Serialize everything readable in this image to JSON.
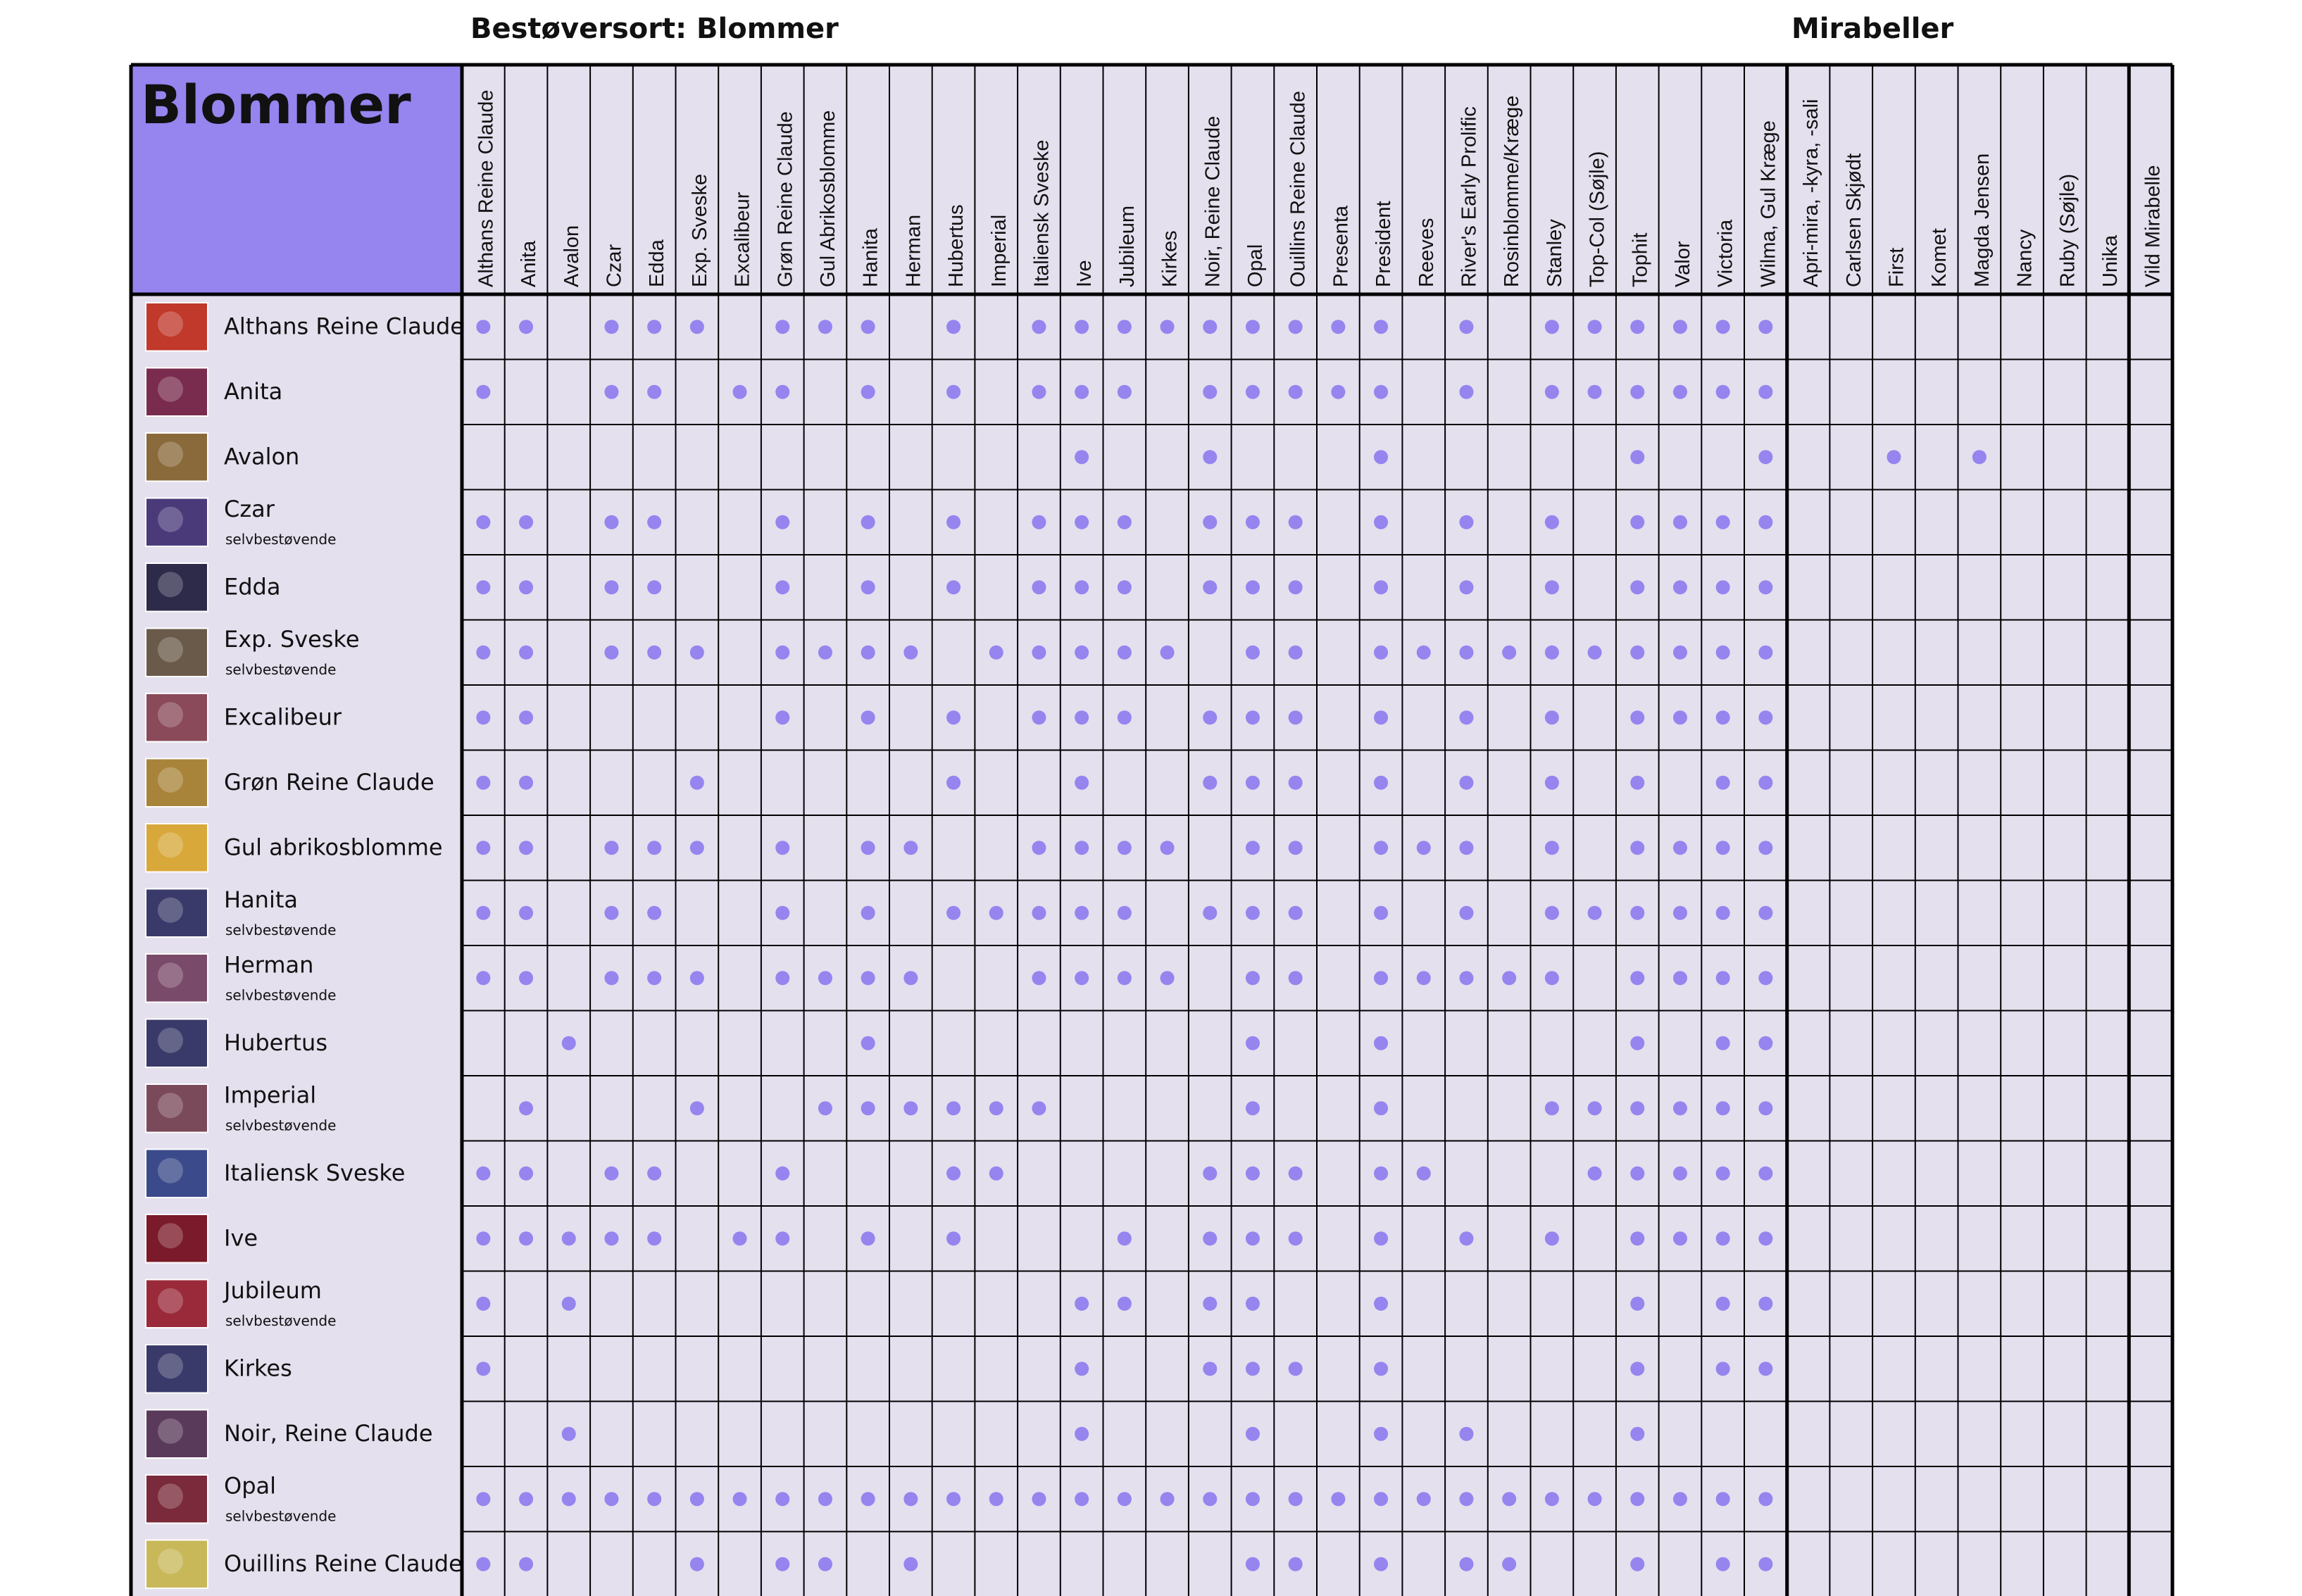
{
  "header": {
    "pollinator_label": "Bestøversort: Blommer",
    "mirabelle_label": "Mirabeller"
  },
  "table": {
    "title": "Blommer",
    "self_fertile_note": "selvbestøvende",
    "colors": {
      "background": "#e4e0ee",
      "title_bg": "#9684ef",
      "dot": "#9684ef",
      "line": "#000000"
    },
    "plum_columns": [
      "Althans Reine Claude",
      "Anita",
      "Avalon",
      "Czar",
      "Edda",
      "Exp. Sveske",
      "Excalibeur",
      "Grøn Reine Claude",
      "Gul Abrikosblomme",
      "Hanita",
      "Herman",
      "Hubertus",
      "Imperial",
      "Italiensk Sveske",
      "Ive",
      "Jubileum",
      "Kirkes",
      "Noir, Reine Claude",
      "Opal",
      "Ouillins Reine Claude",
      "Presenta",
      "President",
      "Reeves",
      "River's Early Prolific",
      "Rosinblomme/Kræge",
      "Stanley",
      "Top-Col (Søjle)",
      "Tophit",
      "Valor",
      "Victoria",
      "Wilma, Gul Kræge"
    ],
    "mirabelle_columns": [
      "Apri-mira, -kyra, -sali",
      "Carlsen Skjødt",
      "First",
      "Komet",
      "Magda Jensen",
      "Nancy",
      "Ruby (Søjle)",
      "Unika"
    ],
    "wild_column": [
      "Vild Mirabelle"
    ],
    "rows": [
      {
        "name": "Althans Reine Claude",
        "self_fertile": false,
        "fruit_color": "#c0392b",
        "dots": [
          0,
          1,
          3,
          4,
          5,
          7,
          8,
          9,
          11,
          13,
          14,
          15,
          16,
          17,
          18,
          19,
          20,
          21,
          23,
          25,
          26,
          27,
          28,
          29,
          30
        ]
      },
      {
        "name": "Anita",
        "self_fertile": false,
        "fruit_color": "#7a2c4e",
        "dots": [
          0,
          3,
          4,
          6,
          7,
          9,
          11,
          13,
          14,
          15,
          17,
          18,
          19,
          20,
          21,
          23,
          25,
          26,
          27,
          28,
          29,
          30
        ]
      },
      {
        "name": "Avalon",
        "self_fertile": false,
        "fruit_color": "#8a6a3a",
        "dots": [
          14,
          17,
          21,
          27,
          30,
          33,
          35
        ]
      },
      {
        "name": "Czar",
        "self_fertile": true,
        "fruit_color": "#4a3a7a",
        "dots": [
          0,
          1,
          3,
          4,
          7,
          9,
          11,
          13,
          14,
          15,
          17,
          18,
          19,
          21,
          23,
          25,
          27,
          28,
          29,
          30
        ]
      },
      {
        "name": "Edda",
        "self_fertile": false,
        "fruit_color": "#2e2a4a",
        "dots": [
          0,
          1,
          3,
          4,
          7,
          9,
          11,
          13,
          14,
          15,
          17,
          18,
          19,
          21,
          23,
          25,
          27,
          28,
          29,
          30
        ]
      },
      {
        "name": "Exp. Sveske",
        "self_fertile": true,
        "fruit_color": "#6a5a4a",
        "dots": [
          0,
          1,
          3,
          4,
          5,
          7,
          8,
          9,
          10,
          12,
          13,
          14,
          15,
          16,
          18,
          19,
          21,
          22,
          23,
          24,
          25,
          26,
          27,
          28,
          29,
          30
        ]
      },
      {
        "name": "Excalibeur",
        "self_fertile": false,
        "fruit_color": "#8a4a5a",
        "dots": [
          0,
          1,
          7,
          9,
          11,
          13,
          14,
          15,
          17,
          18,
          19,
          21,
          23,
          25,
          27,
          28,
          29,
          30
        ]
      },
      {
        "name": "Grøn Reine Claude",
        "self_fertile": false,
        "fruit_color": "#a8843a",
        "dots": [
          0,
          1,
          5,
          11,
          14,
          17,
          18,
          19,
          21,
          23,
          25,
          27,
          29,
          30
        ]
      },
      {
        "name": "Gul abrikosblomme",
        "self_fertile": false,
        "fruit_color": "#d8a83a",
        "dots": [
          0,
          1,
          3,
          4,
          5,
          7,
          9,
          10,
          13,
          14,
          15,
          16,
          18,
          19,
          21,
          22,
          23,
          25,
          27,
          28,
          29,
          30
        ]
      },
      {
        "name": "Hanita",
        "self_fertile": true,
        "fruit_color": "#3a3a6a",
        "dots": [
          0,
          1,
          3,
          4,
          7,
          9,
          11,
          12,
          13,
          14,
          15,
          17,
          18,
          19,
          21,
          23,
          25,
          26,
          27,
          28,
          29,
          30
        ]
      },
      {
        "name": "Herman",
        "self_fertile": true,
        "fruit_color": "#7a4a6a",
        "dots": [
          0,
          1,
          3,
          4,
          5,
          7,
          8,
          9,
          10,
          13,
          14,
          15,
          16,
          18,
          19,
          21,
          22,
          23,
          24,
          25,
          27,
          28,
          29,
          30
        ]
      },
      {
        "name": "Hubertus",
        "self_fertile": false,
        "fruit_color": "#3a3a6a",
        "dots": [
          2,
          9,
          18,
          21,
          27,
          29,
          30
        ]
      },
      {
        "name": "Imperial",
        "self_fertile": true,
        "fruit_color": "#7a4a5a",
        "dots": [
          1,
          5,
          8,
          9,
          10,
          11,
          12,
          13,
          18,
          21,
          25,
          26,
          27,
          28,
          29,
          30
        ]
      },
      {
        "name": "Italiensk Sveske",
        "self_fertile": false,
        "fruit_color": "#3a4a8a",
        "dots": [
          0,
          1,
          3,
          4,
          7,
          11,
          12,
          17,
          18,
          19,
          21,
          22,
          26,
          27,
          28,
          29,
          30
        ]
      },
      {
        "name": "Ive",
        "self_fertile": false,
        "fruit_color": "#7a1a2a",
        "dots": [
          0,
          1,
          2,
          3,
          4,
          6,
          7,
          9,
          11,
          15,
          17,
          18,
          19,
          21,
          23,
          25,
          27,
          28,
          29,
          30
        ]
      },
      {
        "name": "Jubileum",
        "self_fertile": true,
        "fruit_color": "#9a2a3a",
        "dots": [
          0,
          2,
          14,
          15,
          17,
          18,
          21,
          27,
          29,
          30
        ]
      },
      {
        "name": "Kirkes",
        "self_fertile": false,
        "fruit_color": "#3a3a6a",
        "dots": [
          0,
          14,
          17,
          18,
          19,
          21,
          27,
          29,
          30
        ]
      },
      {
        "name": "Noir, Reine Claude",
        "self_fertile": false,
        "fruit_color": "#5a3a5a",
        "dots": [
          2,
          14,
          18,
          21,
          23,
          27
        ]
      },
      {
        "name": "Opal",
        "self_fertile": true,
        "fruit_color": "#7a2a3a",
        "dots": [
          0,
          1,
          2,
          3,
          4,
          5,
          6,
          7,
          8,
          9,
          10,
          11,
          12,
          13,
          14,
          15,
          16,
          17,
          18,
          19,
          20,
          21,
          22,
          23,
          24,
          25,
          26,
          27,
          28,
          29,
          30
        ]
      },
      {
        "name": "Ouillins Reine Claude",
        "self_fertile": false,
        "fruit_color": "#c8b85a",
        "dots": [
          0,
          1,
          5,
          7,
          8,
          10,
          18,
          19,
          21,
          23,
          24,
          27,
          29,
          30
        ]
      }
    ]
  }
}
